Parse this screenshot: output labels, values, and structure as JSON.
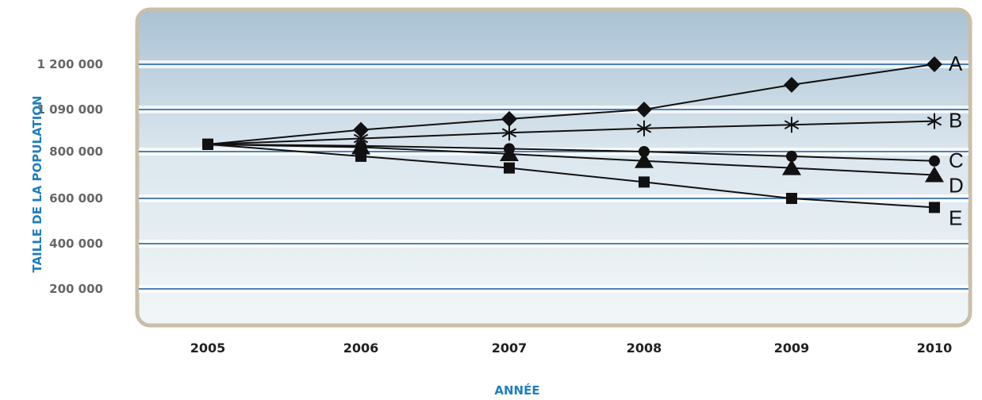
{
  "chart_data": {
    "type": "line",
    "xlabel": "ANNÉE",
    "ylabel": "TAILLE DE LA POPULATION",
    "x": [
      "2005",
      "2006",
      "2007",
      "2008",
      "2009",
      "2010"
    ],
    "y_tick_labels": [
      "1 200 000",
      "1 090 000",
      "800 000",
      "600 000",
      "400 000",
      "200 000"
    ],
    "grid": "horizontal",
    "legend": "direct labels at right end of each line",
    "colors": {
      "background_top": "#a9c2d4",
      "background_bottom": "#f2f6f8",
      "frame": "#c9bfa8",
      "gridline": "#1a5a9a",
      "line": "#111111",
      "axis_title": "#1f7fbf"
    },
    "series": [
      {
        "name": "A",
        "marker": "diamond",
        "values": [
          850000,
          950000,
          1025000,
          1090000,
          1150000,
          1200000
        ]
      },
      {
        "name": "B",
        "marker": "asterisk",
        "values": [
          850000,
          890000,
          930000,
          960000,
          985000,
          1010000
        ]
      },
      {
        "name": "C",
        "marker": "circle",
        "values": [
          850000,
          840000,
          820000,
          800000,
          780000,
          760000
        ]
      },
      {
        "name": "D",
        "marker": "triangle",
        "values": [
          850000,
          830000,
          790000,
          760000,
          730000,
          700000
        ]
      },
      {
        "name": "E",
        "marker": "square",
        "values": [
          850000,
          780000,
          730000,
          670000,
          600000,
          560000
        ]
      }
    ]
  }
}
